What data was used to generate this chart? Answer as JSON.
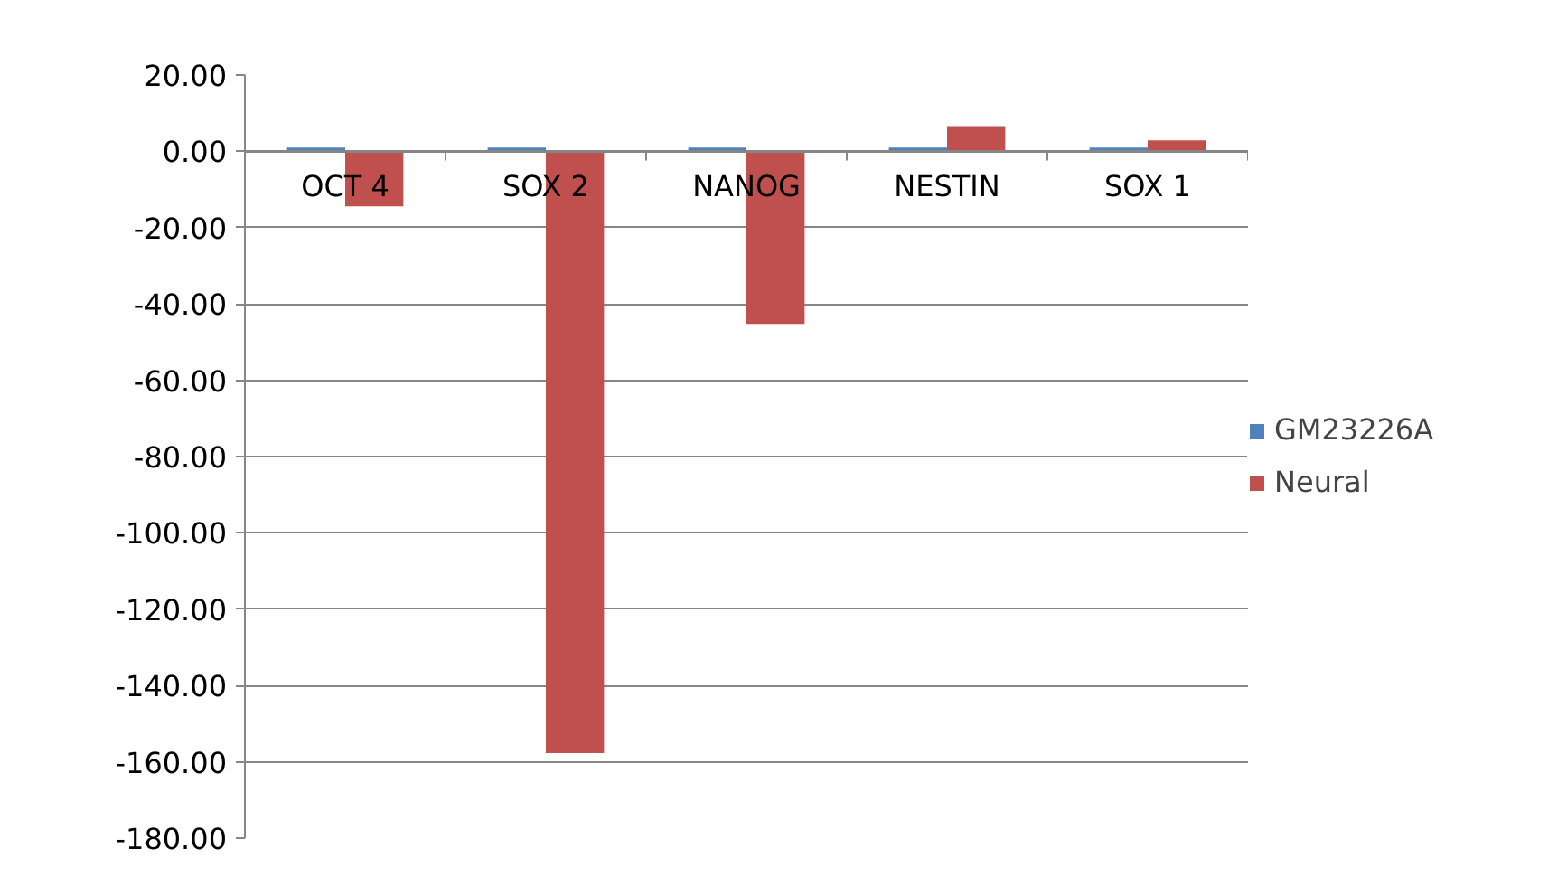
{
  "chart_data": {
    "type": "bar",
    "categories": [
      "OCT 4",
      "SOX 2",
      "NANOG",
      "NESTIN",
      "SOX 1"
    ],
    "series": [
      {
        "name": "GM23226A",
        "color": "#4f81bd",
        "values": [
          1,
          1,
          1,
          1,
          1
        ]
      },
      {
        "name": "Neural",
        "color": "#c0504d",
        "values": [
          -14.4,
          -157.7,
          -45.2,
          6.6,
          2.9
        ]
      }
    ],
    "ylim": [
      -180,
      20
    ],
    "yticks": [
      {
        "value": 20,
        "label": "20.00"
      },
      {
        "value": 0,
        "label": "0.00"
      },
      {
        "value": -20,
        "label": "-20.00"
      },
      {
        "value": -40,
        "label": "-40.00"
      },
      {
        "value": -60,
        "label": "-60.00"
      },
      {
        "value": -80,
        "label": "-80.00"
      },
      {
        "value": -100,
        "label": "-100.00"
      },
      {
        "value": -120,
        "label": "-120.00"
      },
      {
        "value": -140,
        "label": "-140.00"
      },
      {
        "value": -160,
        "label": "-160.00"
      },
      {
        "value": -180,
        "label": "-180.00"
      }
    ],
    "grid": "y",
    "legend": "right"
  }
}
